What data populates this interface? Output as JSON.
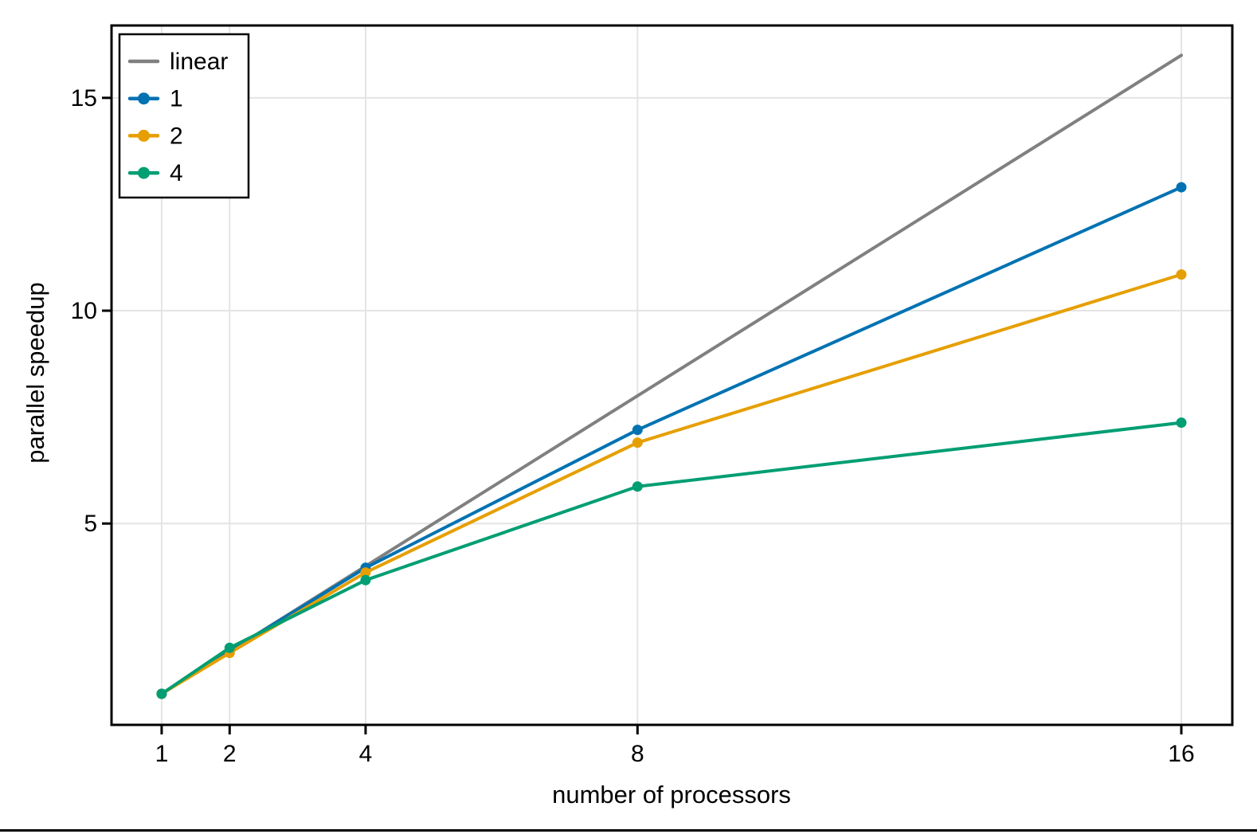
{
  "figure": {
    "background": "#ffffff",
    "frame_color": "#000000",
    "grid_color": "#e4e4e4",
    "text_color": "#000000"
  },
  "chart_data": {
    "type": "line",
    "title": "",
    "xlabel": "number of processors",
    "ylabel": "parallel speedup",
    "xlim": [
      0.2625,
      16.75
    ],
    "ylim": [
      0.27,
      16.7
    ],
    "x_ticks": [
      1,
      2,
      4,
      8,
      16
    ],
    "y_ticks": [
      5,
      10,
      15
    ],
    "grid": true,
    "legend_position": "top-left",
    "series": [
      {
        "name": "linear",
        "color": "#808080",
        "marker": false,
        "x": [
          1,
          16
        ],
        "y": [
          1,
          16
        ]
      },
      {
        "name": "1",
        "color": "#0072B2",
        "marker": true,
        "x": [
          1,
          2,
          4,
          8,
          16
        ],
        "y": [
          1.0,
          2.0,
          3.96,
          7.2,
          12.9
        ]
      },
      {
        "name": "2",
        "color": "#E69F00",
        "marker": true,
        "x": [
          1,
          2,
          4,
          8,
          16
        ],
        "y": [
          1.0,
          1.96,
          3.85,
          6.9,
          10.85
        ]
      },
      {
        "name": "4",
        "color": "#009E73",
        "marker": true,
        "x": [
          1,
          2,
          4,
          8,
          16
        ],
        "y": [
          1.0,
          2.08,
          3.67,
          5.87,
          7.37
        ]
      }
    ]
  }
}
